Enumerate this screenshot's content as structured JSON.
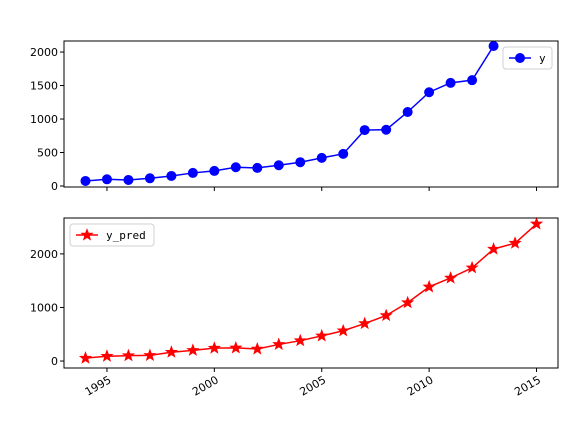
{
  "chart_data": [
    {
      "type": "line",
      "x": [
        1994,
        1995,
        1996,
        1997,
        1998,
        1999,
        2000,
        2001,
        2002,
        2003,
        2004,
        2005,
        2006,
        2007,
        2008,
        2009,
        2010,
        2011,
        2012,
        2013
      ],
      "series": [
        {
          "name": "y",
          "color": "#0000ff",
          "marker": "circle",
          "values": [
            75,
            100,
            90,
            115,
            150,
            195,
            225,
            280,
            270,
            310,
            355,
            420,
            480,
            835,
            840,
            1105,
            1400,
            1540,
            1580,
            2090
          ]
        }
      ],
      "xlim": [
        1993,
        2016
      ],
      "ylim": [
        -15,
        2165
      ],
      "yticks": [
        0,
        500,
        1000,
        1500,
        2000
      ],
      "legend": "upper right"
    },
    {
      "type": "line",
      "x": [
        1994,
        1995,
        1996,
        1997,
        1998,
        1999,
        2000,
        2001,
        2002,
        2003,
        2004,
        2005,
        2006,
        2007,
        2008,
        2009,
        2010,
        2011,
        2012,
        2013,
        2014,
        2015
      ],
      "series": [
        {
          "name": "y_pred",
          "color": "#ff0000",
          "marker": "star",
          "values": [
            55,
            90,
            100,
            105,
            165,
            200,
            240,
            245,
            225,
            310,
            380,
            470,
            565,
            700,
            850,
            1090,
            1385,
            1550,
            1740,
            2090,
            2200,
            2560
          ]
        }
      ],
      "xlim": [
        1993,
        2016
      ],
      "ylim": [
        -130,
        2670
      ],
      "yticks": [
        0,
        1000,
        2000
      ],
      "xticks": [
        1995,
        2000,
        2005,
        2010,
        2015
      ],
      "legend": "upper left"
    }
  ]
}
